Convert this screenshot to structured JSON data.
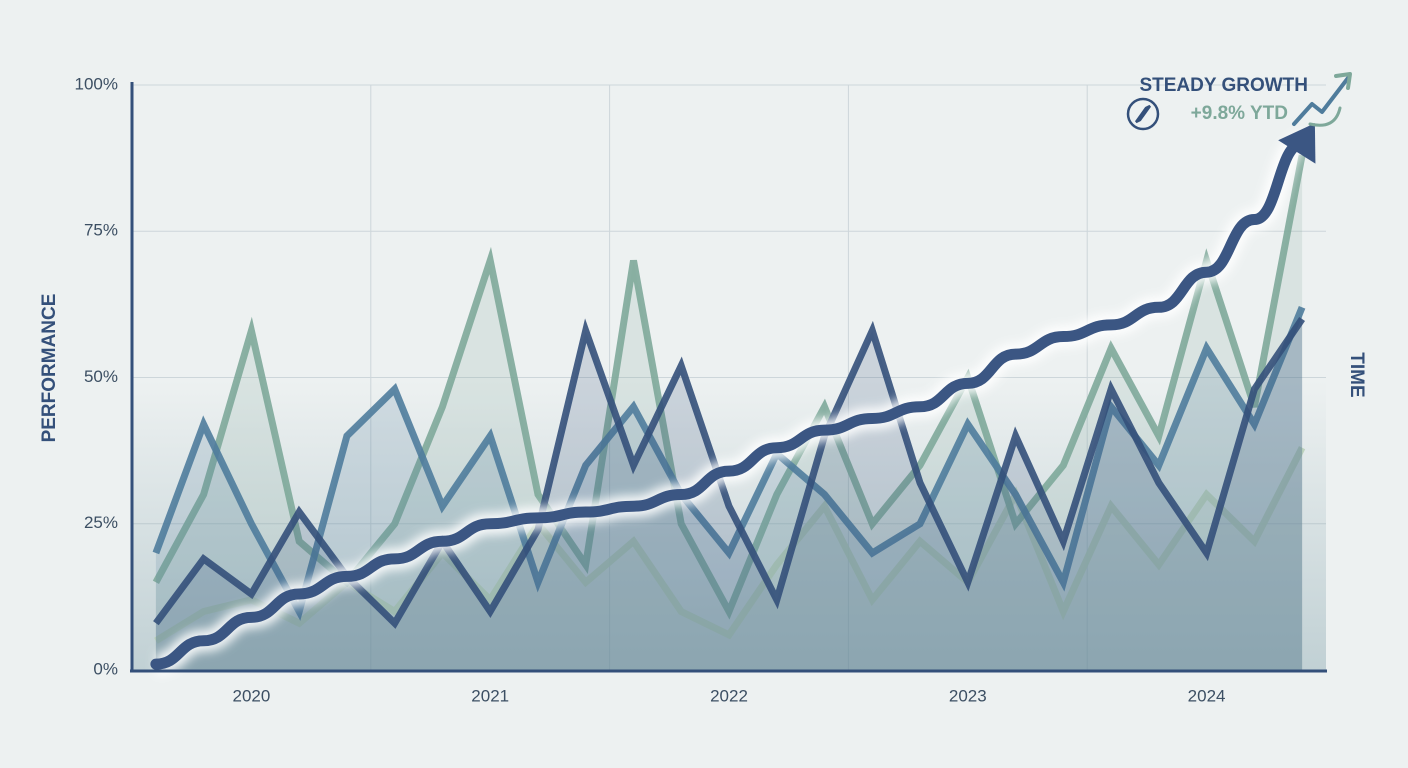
{
  "chart_data": {
    "type": "line",
    "y_label": "PERFORMANCE",
    "x_label": "TIME",
    "annotation_title": "STEADY GROWTH",
    "annotation_value": "+9.8% YTD",
    "categories": [
      null,
      null,
      "2020",
      null,
      null,
      null,
      null,
      "2021",
      null,
      null,
      null,
      null,
      "2022",
      null,
      null,
      null,
      null,
      "2023",
      null,
      null,
      null,
      null,
      "2024",
      null,
      null
    ],
    "ylim": [
      0,
      100
    ],
    "yticks": [
      {
        "value": 0,
        "label": "0%"
      },
      {
        "value": 25,
        "label": "25%"
      },
      {
        "value": 50,
        "label": "50%"
      },
      {
        "value": 75,
        "label": "75%"
      },
      {
        "value": 100,
        "label": "100%"
      }
    ],
    "grid": true,
    "series": [
      {
        "color": "#b9cfb8",
        "values": [
          5,
          10,
          12,
          8,
          15,
          10,
          20,
          12,
          25,
          15,
          22,
          10,
          6,
          18,
          28,
          12,
          22,
          15,
          30,
          10,
          28,
          18,
          30,
          22,
          38
        ]
      },
      {
        "color": "#7ea89a",
        "values": [
          15,
          30,
          58,
          22,
          15,
          25,
          45,
          70,
          30,
          18,
          70,
          25,
          10,
          30,
          45,
          25,
          35,
          50,
          25,
          35,
          55,
          40,
          70,
          45,
          88
        ]
      },
      {
        "color": "#4f7c9c",
        "values": [
          20,
          42,
          25,
          10,
          40,
          48,
          28,
          40,
          15,
          35,
          45,
          30,
          20,
          37,
          30,
          20,
          25,
          42,
          30,
          15,
          45,
          35,
          55,
          42,
          62
        ]
      },
      {
        "color": "#34507a",
        "values": [
          8,
          19,
          13,
          27,
          16,
          8,
          22,
          10,
          24,
          58,
          35,
          52,
          28,
          12,
          40,
          58,
          32,
          15,
          40,
          22,
          48,
          32,
          20,
          48,
          60
        ]
      }
    ],
    "trend": {
      "color": "#3b5683",
      "values": [
        1,
        5,
        9,
        13,
        16,
        19,
        22,
        25,
        26,
        27,
        28,
        30,
        34,
        38,
        41,
        43,
        45,
        49,
        54,
        57,
        59,
        62,
        68,
        77,
        90
      ]
    }
  }
}
